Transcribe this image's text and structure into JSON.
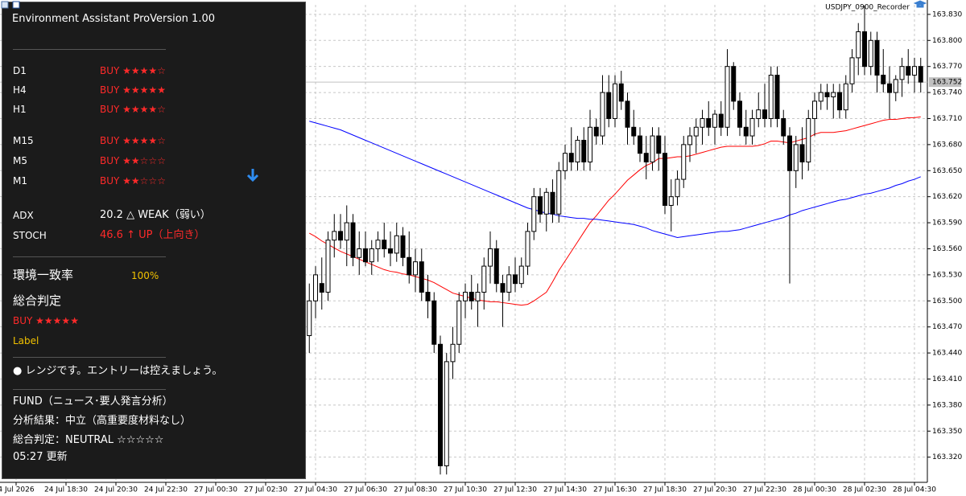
{
  "chart_data": {
    "type": "candlestick",
    "symbol": "USDJPY_0900_Recorder",
    "x": [
      "4 Jul 2026",
      null,
      null,
      null,
      null,
      null,
      null,
      null,
      "24 Jul 18:30",
      null,
      null,
      null,
      null,
      null,
      null,
      null,
      "24 Jul 20:30",
      null,
      null,
      null,
      null,
      null,
      null,
      null,
      "24 Jul 22:30",
      null,
      null,
      null,
      null,
      null,
      null,
      null,
      "27 Jul 00:30",
      null,
      null,
      null,
      null,
      null,
      null,
      null,
      "27 Jul 02:30",
      null,
      null,
      null,
      null,
      null,
      null,
      null,
      "27 Jul 04:30",
      null,
      null,
      null,
      null,
      null,
      null,
      null,
      "27 Jul 06:30",
      null,
      null,
      null,
      null,
      null,
      null,
      null,
      "27 Jul 08:30",
      null,
      null,
      null,
      null,
      null,
      null,
      null,
      "27 Jul 10:30",
      null,
      null,
      null,
      null,
      null,
      null,
      null,
      "27 Jul 12:30",
      null,
      null,
      null,
      null,
      null,
      null,
      null,
      "27 Jul 14:30",
      null,
      null,
      null,
      null,
      null,
      null,
      null,
      "27 Jul 16:30",
      null,
      null,
      null,
      null,
      null,
      null,
      null,
      "27 Jul 18:30",
      null,
      null,
      null,
      null,
      null,
      null,
      null,
      "27 Jul 20:30",
      null,
      null,
      null,
      null,
      null,
      null,
      null,
      "27 Jul 22:30",
      null,
      null,
      null,
      null,
      null,
      null,
      null,
      "28 Jul 00:30",
      null,
      null,
      null,
      null,
      null,
      null,
      null,
      "28 Jul 02:30",
      null,
      null,
      null,
      null,
      null,
      null,
      null,
      "28 Jul 04:30",
      null
    ],
    "ohlc": [
      null,
      null,
      null,
      null,
      null,
      null,
      null,
      null,
      null,
      null,
      null,
      null,
      null,
      null,
      null,
      null,
      null,
      null,
      null,
      null,
      null,
      null,
      null,
      null,
      null,
      null,
      null,
      null,
      null,
      null,
      null,
      null,
      null,
      null,
      null,
      null,
      null,
      null,
      null,
      null,
      null,
      null,
      null,
      null,
      null,
      null,
      null,
      [
        163.46,
        163.52,
        163.44,
        163.5
      ],
      [
        163.5,
        163.54,
        163.48,
        163.53
      ],
      [
        163.52,
        163.55,
        163.49,
        163.51
      ],
      [
        163.51,
        163.58,
        163.5,
        163.57
      ],
      [
        163.57,
        163.6,
        163.55,
        163.58
      ],
      [
        163.58,
        163.6,
        163.56,
        163.57
      ],
      [
        163.57,
        163.61,
        163.54,
        163.59
      ],
      [
        163.59,
        163.6,
        163.54,
        163.55
      ],
      [
        163.55,
        163.58,
        163.53,
        163.56
      ],
      [
        163.56,
        163.58,
        163.54,
        163.545
      ],
      [
        163.545,
        163.57,
        163.53,
        163.56
      ],
      [
        163.56,
        163.58,
        163.545,
        163.57
      ],
      [
        163.57,
        163.59,
        163.55,
        163.56
      ],
      [
        163.56,
        163.58,
        163.54,
        163.555
      ],
      [
        163.555,
        163.59,
        163.545,
        163.575
      ],
      [
        163.575,
        163.585,
        163.54,
        163.55
      ],
      [
        163.55,
        163.58,
        163.52,
        163.53
      ],
      [
        163.53,
        163.56,
        163.51,
        163.545
      ],
      [
        163.545,
        163.56,
        163.5,
        163.51
      ],
      [
        163.51,
        163.53,
        163.48,
        163.5
      ],
      [
        163.5,
        163.51,
        163.44,
        163.45
      ],
      [
        163.45,
        163.46,
        163.3,
        163.31
      ],
      [
        163.31,
        163.44,
        163.3,
        163.43
      ],
      [
        163.43,
        163.47,
        163.41,
        163.45
      ],
      [
        163.45,
        163.51,
        163.44,
        163.5
      ],
      [
        163.5,
        163.52,
        163.48,
        163.51
      ],
      [
        163.51,
        163.53,
        163.49,
        163.5
      ],
      [
        163.5,
        163.52,
        163.47,
        163.51
      ],
      [
        163.51,
        163.55,
        163.49,
        163.54
      ],
      [
        163.54,
        163.58,
        163.52,
        163.56
      ],
      [
        163.56,
        163.57,
        163.51,
        163.52
      ],
      [
        163.52,
        163.53,
        163.47,
        163.51
      ],
      [
        163.51,
        163.54,
        163.5,
        163.53
      ],
      [
        163.53,
        163.55,
        163.51,
        163.52
      ],
      [
        163.52,
        163.55,
        163.515,
        163.54
      ],
      [
        163.54,
        163.59,
        163.53,
        163.58
      ],
      [
        163.58,
        163.63,
        163.57,
        163.62
      ],
      [
        163.62,
        163.63,
        163.59,
        163.6
      ],
      [
        163.6,
        163.63,
        163.58,
        163.625
      ],
      [
        163.625,
        163.64,
        163.59,
        163.6
      ],
      [
        163.6,
        163.66,
        163.59,
        163.65
      ],
      [
        163.65,
        163.68,
        163.64,
        163.67
      ],
      [
        163.67,
        163.7,
        163.65,
        163.66
      ],
      [
        163.66,
        163.69,
        163.65,
        163.685
      ],
      [
        163.685,
        163.7,
        163.65,
        163.66
      ],
      [
        163.66,
        163.72,
        163.65,
        163.7
      ],
      [
        163.7,
        163.71,
        163.68,
        163.69
      ],
      [
        163.69,
        163.76,
        163.68,
        163.74
      ],
      [
        163.74,
        163.76,
        163.7,
        163.71
      ],
      [
        163.71,
        163.76,
        163.7,
        163.75
      ],
      [
        163.75,
        163.765,
        163.72,
        163.73
      ],
      [
        163.73,
        163.74,
        163.68,
        163.7
      ],
      [
        163.7,
        163.72,
        163.68,
        163.69
      ],
      [
        163.69,
        163.7,
        163.66,
        163.67
      ],
      [
        163.67,
        163.69,
        163.64,
        163.66
      ],
      [
        163.66,
        163.7,
        163.65,
        163.69
      ],
      [
        163.69,
        163.7,
        163.65,
        163.67
      ],
      [
        163.67,
        163.69,
        163.6,
        163.61
      ],
      [
        163.61,
        163.64,
        163.58,
        163.62
      ],
      [
        163.62,
        163.65,
        163.61,
        163.64
      ],
      [
        163.64,
        163.69,
        163.63,
        163.68
      ],
      [
        163.68,
        163.7,
        163.66,
        163.69
      ],
      [
        163.69,
        163.71,
        163.67,
        163.7
      ],
      [
        163.7,
        163.72,
        163.68,
        163.71
      ],
      [
        163.71,
        163.73,
        163.69,
        163.7
      ],
      [
        163.7,
        163.72,
        163.68,
        163.715
      ],
      [
        163.715,
        163.73,
        163.69,
        163.7
      ],
      [
        163.7,
        163.79,
        163.69,
        163.77
      ],
      [
        163.77,
        163.775,
        163.72,
        163.73
      ],
      [
        163.73,
        163.74,
        163.69,
        163.7
      ],
      [
        163.7,
        163.72,
        163.68,
        163.69
      ],
      [
        163.69,
        163.72,
        163.68,
        163.71
      ],
      [
        163.71,
        163.74,
        163.7,
        163.72
      ],
      [
        163.72,
        163.75,
        163.7,
        163.71
      ],
      [
        163.71,
        163.77,
        163.7,
        163.76
      ],
      [
        163.76,
        163.77,
        163.7,
        163.71
      ],
      [
        163.71,
        163.72,
        163.68,
        163.69
      ],
      [
        163.69,
        163.7,
        163.52,
        163.65
      ],
      [
        163.65,
        163.69,
        163.63,
        163.68
      ],
      [
        163.68,
        163.7,
        163.64,
        163.66
      ],
      [
        163.66,
        163.72,
        163.65,
        163.71
      ],
      [
        163.71,
        163.74,
        163.69,
        163.73
      ],
      [
        163.73,
        163.75,
        163.72,
        163.74
      ],
      [
        163.74,
        163.75,
        163.72,
        163.735
      ],
      [
        163.735,
        163.75,
        163.71,
        163.74
      ],
      [
        163.74,
        163.75,
        163.71,
        163.72
      ],
      [
        163.72,
        163.76,
        163.71,
        163.75
      ],
      [
        163.75,
        163.79,
        163.74,
        163.78
      ],
      [
        163.78,
        163.82,
        163.76,
        163.81
      ],
      [
        163.81,
        163.84,
        163.76,
        163.77
      ],
      [
        163.77,
        163.81,
        163.76,
        163.8
      ],
      [
        163.8,
        163.81,
        163.74,
        163.76
      ],
      [
        163.76,
        163.79,
        163.74,
        163.75
      ],
      [
        163.75,
        163.77,
        163.71,
        163.74
      ],
      [
        163.74,
        163.76,
        163.73,
        163.755
      ],
      [
        163.755,
        163.78,
        163.735,
        163.77
      ],
      [
        163.77,
        163.79,
        163.75,
        163.76
      ],
      [
        163.76,
        163.78,
        163.74,
        163.77
      ],
      [
        163.77,
        163.78,
        163.74,
        163.752
      ]
    ],
    "lines": [
      {
        "color": "#ff0000",
        "values": [
          null,
          null,
          null,
          null,
          null,
          null,
          null,
          null,
          null,
          null,
          null,
          null,
          null,
          null,
          null,
          null,
          null,
          null,
          null,
          null,
          null,
          null,
          null,
          null,
          null,
          null,
          null,
          null,
          null,
          null,
          null,
          null,
          null,
          null,
          null,
          null,
          null,
          null,
          null,
          null,
          null,
          null,
          null,
          null,
          null,
          null,
          null,
          163.578,
          163.574,
          163.569,
          163.565,
          163.561,
          163.557,
          163.554,
          163.551,
          163.548,
          163.545,
          163.542,
          163.539,
          163.536,
          163.534,
          163.533,
          163.531,
          163.53,
          163.528,
          163.526,
          163.524,
          163.521,
          163.517,
          163.513,
          163.509,
          163.507,
          163.505,
          163.503,
          163.501,
          163.5,
          163.499,
          163.499,
          163.498,
          163.497,
          163.496,
          163.495,
          163.496,
          163.5,
          163.505,
          163.51,
          163.522,
          163.535,
          163.546,
          163.557,
          163.568,
          163.579,
          163.59,
          163.598,
          163.607,
          163.616,
          163.623,
          163.631,
          163.639,
          163.645,
          163.651,
          163.656,
          163.659,
          163.664,
          163.664,
          163.665,
          163.666,
          163.666,
          163.667,
          163.669,
          163.671,
          163.673,
          163.675,
          163.677,
          163.678,
          163.678,
          163.678,
          163.678,
          163.678,
          163.679,
          163.681,
          163.684,
          163.684,
          163.683,
          163.682,
          163.684,
          163.686,
          163.688,
          163.692,
          163.694,
          163.694,
          163.694,
          163.695,
          163.696,
          163.698,
          163.7,
          163.702,
          163.704,
          163.706,
          163.708,
          163.709,
          163.709,
          163.71,
          163.711,
          163.711,
          163.712
        ]
      },
      {
        "color": "#0000ff",
        "values": [
          null,
          null,
          null,
          null,
          null,
          null,
          null,
          null,
          null,
          null,
          null,
          null,
          null,
          null,
          null,
          null,
          null,
          null,
          null,
          null,
          null,
          null,
          null,
          null,
          null,
          null,
          null,
          null,
          null,
          null,
          null,
          null,
          null,
          null,
          null,
          null,
          null,
          null,
          null,
          null,
          null,
          null,
          null,
          null,
          null,
          null,
          null,
          163.707,
          163.705,
          163.703,
          163.701,
          163.699,
          163.697,
          163.694,
          163.691,
          163.688,
          163.685,
          163.682,
          163.679,
          163.676,
          163.673,
          163.67,
          163.667,
          163.664,
          163.661,
          163.658,
          163.655,
          163.652,
          163.649,
          163.646,
          163.643,
          163.64,
          163.637,
          163.634,
          163.631,
          163.628,
          163.625,
          163.622,
          163.619,
          163.616,
          163.613,
          163.61,
          163.607,
          163.605,
          163.603,
          163.601,
          163.6,
          163.598,
          163.597,
          163.596,
          163.595,
          163.595,
          163.594,
          163.594,
          163.593,
          163.592,
          163.591,
          163.59,
          163.589,
          163.588,
          163.586,
          163.584,
          163.581,
          163.579,
          163.577,
          163.575,
          163.573,
          163.574,
          163.575,
          163.576,
          163.577,
          163.578,
          163.579,
          163.58,
          163.58,
          163.581,
          163.582,
          163.584,
          163.586,
          163.588,
          163.59,
          163.592,
          163.594,
          163.596,
          163.599,
          163.601,
          163.604,
          163.606,
          163.608,
          163.61,
          163.612,
          163.614,
          163.616,
          163.617,
          163.619,
          163.621,
          163.623,
          163.624,
          163.626,
          163.628,
          163.63,
          163.633,
          163.635,
          163.638,
          163.64,
          163.643
        ]
      }
    ],
    "last_price": 163.752,
    "ylim": [
      163.291,
      163.841
    ],
    "yticks": [
      {
        "value": 163.83,
        "label": "163.830"
      },
      {
        "value": 163.8,
        "label": "163.800"
      },
      {
        "value": 163.77,
        "label": "163.770"
      },
      {
        "value": 163.74,
        "label": "163.740"
      },
      {
        "value": 163.71,
        "label": "163.710"
      },
      {
        "value": 163.68,
        "label": "163.680"
      },
      {
        "value": 163.65,
        "label": "163.650"
      },
      {
        "value": 163.62,
        "label": "163.620"
      },
      {
        "value": 163.59,
        "label": "163.590"
      },
      {
        "value": 163.56,
        "label": "163.560"
      },
      {
        "value": 163.53,
        "label": "163.530"
      },
      {
        "value": 163.5,
        "label": "163.500"
      },
      {
        "value": 163.47,
        "label": "163.470"
      },
      {
        "value": 163.44,
        "label": "163.440"
      },
      {
        "value": 163.41,
        "label": "163.410"
      },
      {
        "value": 163.38,
        "label": "163.380"
      },
      {
        "value": 163.35,
        "label": "163.350"
      },
      {
        "value": 163.32,
        "label": "163.320"
      }
    ],
    "grid": true,
    "up_color": "#ffffff",
    "down_color": "#000000"
  },
  "panel": {
    "title": "Environment Assistant ProVersion 1.00",
    "timeframes": [
      {
        "label": "D1",
        "signal": "BUY ★★★★☆"
      },
      {
        "label": "H4",
        "signal": "BUY ★★★★★"
      },
      {
        "label": "H1",
        "signal": "BUY ★★★★☆"
      },
      {
        "label": "M15",
        "signal": "BUY ★★★★☆"
      },
      {
        "label": "M5",
        "signal": "BUY ★★☆☆☆"
      },
      {
        "label": "M1",
        "signal": "BUY ★★☆☆☆"
      }
    ],
    "indicators": [
      {
        "label": "ADX",
        "value": "20.2 △ WEAK（弱い）"
      },
      {
        "label": "STOCH",
        "value": "46.6 ↑ UP（上向き）"
      }
    ],
    "agreement": {
      "label": "環境一致率",
      "value": "100%"
    },
    "verdict": {
      "label": "総合判定",
      "signal": "BUY ★★★★★",
      "note": "Label"
    },
    "message": "● レンジです。エントリーは控えましょう。",
    "fund": {
      "title": "FUND（ニュース･要人発言分析）",
      "result": "分析結果：中立（高重要度材料なし）",
      "verdict": "総合判定：NEUTRAL ☆☆☆☆☆",
      "updated": "05:27 更新"
    }
  }
}
